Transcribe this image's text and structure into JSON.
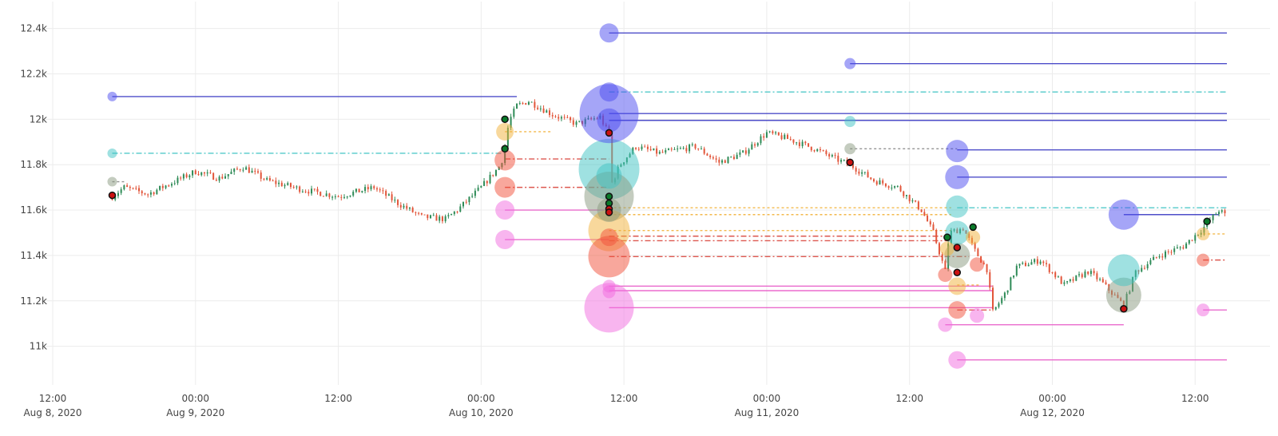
{
  "chart_data": {
    "type": "candlestick",
    "title": "",
    "xlabel": "",
    "ylabel": "",
    "x_range": [
      "2020-08-08T12:00",
      "2020-08-12T14:40"
    ],
    "ylim": [
      10830,
      12490
    ],
    "grid": true,
    "y_ticks": [
      {
        "value": 11000,
        "label": "11k"
      },
      {
        "value": 11200,
        "label": "11.2k"
      },
      {
        "value": 11400,
        "label": "11.4k"
      },
      {
        "value": 11600,
        "label": "11.6k"
      },
      {
        "value": 11800,
        "label": "11.8k"
      },
      {
        "value": 12000,
        "label": "12k"
      },
      {
        "value": 12200,
        "label": "12.2k"
      },
      {
        "value": 12400,
        "label": "12.4k"
      }
    ],
    "x_ticks": [
      {
        "t": "2020-08-08T12:00",
        "line1": "12:00",
        "line2": "Aug 8, 2020"
      },
      {
        "t": "2020-08-09T00:00",
        "line1": "00:00",
        "line2": "Aug 9, 2020"
      },
      {
        "t": "2020-08-09T12:00",
        "line1": "12:00",
        "line2": ""
      },
      {
        "t": "2020-08-10T00:00",
        "line1": "00:00",
        "line2": "Aug 10, 2020"
      },
      {
        "t": "2020-08-10T12:00",
        "line1": "12:00",
        "line2": ""
      },
      {
        "t": "2020-08-11T00:00",
        "line1": "00:00",
        "line2": "Aug 11, 2020"
      },
      {
        "t": "2020-08-11T12:00",
        "line1": "12:00",
        "line2": ""
      },
      {
        "t": "2020-08-12T00:00",
        "line1": "00:00",
        "line2": "Aug 12, 2020"
      },
      {
        "t": "2020-08-12T12:00",
        "line1": "12:00",
        "line2": ""
      }
    ],
    "price_path": [
      [
        "2020-08-08T17:00",
        11660
      ],
      [
        "2020-08-08T18:00",
        11700
      ],
      [
        "2020-08-08T20:00",
        11670
      ],
      [
        "2020-08-08T22:00",
        11720
      ],
      [
        "2020-08-09T00:00",
        11770
      ],
      [
        "2020-08-09T02:00",
        11740
      ],
      [
        "2020-08-09T04:00",
        11790
      ],
      [
        "2020-08-09T06:00",
        11730
      ],
      [
        "2020-08-09T09:00",
        11690
      ],
      [
        "2020-08-09T12:00",
        11660
      ],
      [
        "2020-08-09T15:00",
        11700
      ],
      [
        "2020-08-09T17:00",
        11630
      ],
      [
        "2020-08-09T19:00",
        11570
      ],
      [
        "2020-08-09T21:00",
        11560
      ],
      [
        "2020-08-09T22:00",
        11600
      ],
      [
        "2020-08-10T00:00",
        11700
      ],
      [
        "2020-08-10T01:00",
        11760
      ],
      [
        "2020-08-10T01:40",
        11800
      ],
      [
        "2020-08-10T02:00",
        11880
      ],
      [
        "2020-08-10T02:20",
        11990
      ],
      [
        "2020-08-10T03:00",
        12060
      ],
      [
        "2020-08-10T04:00",
        12080
      ],
      [
        "2020-08-10T06:00",
        12020
      ],
      [
        "2020-08-10T08:00",
        11980
      ],
      [
        "2020-08-10T10:00",
        12010
      ],
      [
        "2020-08-10T10:45",
        11930
      ],
      [
        "2020-08-10T10:48",
        11600
      ],
      [
        "2020-08-10T10:52",
        11480
      ],
      [
        "2020-08-10T11:00",
        11720
      ],
      [
        "2020-08-10T11:40",
        11800
      ],
      [
        "2020-08-10T13:00",
        11880
      ],
      [
        "2020-08-10T15:00",
        11850
      ],
      [
        "2020-08-10T18:00",
        11880
      ],
      [
        "2020-08-10T20:00",
        11810
      ],
      [
        "2020-08-10T22:00",
        11850
      ],
      [
        "2020-08-11T00:00",
        11940
      ],
      [
        "2020-08-11T02:00",
        11910
      ],
      [
        "2020-08-11T04:00",
        11870
      ],
      [
        "2020-08-11T06:00",
        11820
      ],
      [
        "2020-08-11T07:00",
        11800
      ],
      [
        "2020-08-11T09:00",
        11730
      ],
      [
        "2020-08-11T11:00",
        11700
      ],
      [
        "2020-08-11T13:00",
        11600
      ],
      [
        "2020-08-11T14:00",
        11500
      ],
      [
        "2020-08-11T15:00",
        11330
      ],
      [
        "2020-08-11T15:20",
        11500
      ],
      [
        "2020-08-11T16:30",
        11520
      ],
      [
        "2020-08-11T17:30",
        11420
      ],
      [
        "2020-08-11T18:30",
        11340
      ],
      [
        "2020-08-11T19:00",
        11150
      ],
      [
        "2020-08-11T20:00",
        11230
      ],
      [
        "2020-08-11T21:00",
        11350
      ],
      [
        "2020-08-11T23:00",
        11380
      ],
      [
        "2020-08-12T01:00",
        11270
      ],
      [
        "2020-08-12T03:00",
        11330
      ],
      [
        "2020-08-12T04:00",
        11290
      ],
      [
        "2020-08-12T06:00",
        11180
      ],
      [
        "2020-08-12T07:00",
        11330
      ],
      [
        "2020-08-12T09:00",
        11400
      ],
      [
        "2020-08-12T11:00",
        11440
      ],
      [
        "2020-08-12T12:40",
        11520
      ],
      [
        "2020-08-12T14:00",
        11600
      ],
      [
        "2020-08-12T14:40",
        11570
      ]
    ],
    "horizontal_lines": [
      {
        "from": "2020-08-08T17:00",
        "to": "2020-08-10T03:00",
        "y": 12100,
        "style": "solid",
        "color": "#3b3bc4"
      },
      {
        "from": "2020-08-08T17:00",
        "to": "2020-08-10T02:00",
        "y": 11850,
        "style": "dashdot",
        "color": "#40c4c4"
      },
      {
        "from": "2020-08-08T17:00",
        "to": "2020-08-08T18:00",
        "y": 11725,
        "style": "dotted",
        "color": "#888888"
      },
      {
        "from": "2020-08-10T02:00",
        "to": "2020-08-10T06:00",
        "y": 11945,
        "style": "dotted",
        "color": "#f2b23a"
      },
      {
        "from": "2020-08-10T02:00",
        "to": "2020-08-10T10:45",
        "y": 11825,
        "style": "dashdot",
        "color": "#d9453d"
      },
      {
        "from": "2020-08-10T02:00",
        "to": "2020-08-10T10:45",
        "y": 11700,
        "style": "dashdot",
        "color": "#d9453d"
      },
      {
        "from": "2020-08-10T02:00",
        "to": "2020-08-10T10:45",
        "y": 11600,
        "style": "solid",
        "color": "#e85cc8"
      },
      {
        "from": "2020-08-10T02:00",
        "to": "2020-08-10T10:45",
        "y": 11470,
        "style": "solid",
        "color": "#e85cc8"
      },
      {
        "from": "2020-08-10T10:45",
        "to": "2020-08-12T14:40",
        "y": 12380,
        "style": "solid",
        "color": "#3b3bc4"
      },
      {
        "from": "2020-08-10T10:45",
        "to": "2020-08-12T14:40",
        "y": 12120,
        "style": "dashdot",
        "color": "#40c4c4"
      },
      {
        "from": "2020-08-10T10:45",
        "to": "2020-08-12T14:40",
        "y": 12025,
        "style": "solid",
        "color": "#3b3bc4"
      },
      {
        "from": "2020-08-10T10:45",
        "to": "2020-08-12T14:40",
        "y": 11995,
        "style": "solid",
        "color": "#3b3bc4"
      },
      {
        "from": "2020-08-10T10:45",
        "to": "2020-08-11T15:30",
        "y": 11610,
        "style": "dotted",
        "color": "#f2b23a"
      },
      {
        "from": "2020-08-10T10:45",
        "to": "2020-08-11T15:30",
        "y": 11580,
        "style": "dotted",
        "color": "#f2b23a"
      },
      {
        "from": "2020-08-10T10:45",
        "to": "2020-08-11T15:30",
        "y": 11510,
        "style": "dotted",
        "color": "#f2b23a"
      },
      {
        "from": "2020-08-10T10:45",
        "to": "2020-08-11T15:30",
        "y": 11485,
        "style": "dashdot",
        "color": "#d9453d"
      },
      {
        "from": "2020-08-10T10:45",
        "to": "2020-08-11T15:30",
        "y": 11465,
        "style": "dashdot",
        "color": "#d9453d"
      },
      {
        "from": "2020-08-10T10:45",
        "to": "2020-08-11T17:00",
        "y": 11395,
        "style": "dashdot",
        "color": "#d9453d"
      },
      {
        "from": "2020-08-10T10:45",
        "to": "2020-08-11T19:00",
        "y": 11265,
        "style": "solid",
        "color": "#e85cc8"
      },
      {
        "from": "2020-08-10T10:45",
        "to": "2020-08-11T19:00",
        "y": 11245,
        "style": "solid",
        "color": "#e85cc8"
      },
      {
        "from": "2020-08-10T10:45",
        "to": "2020-08-11T19:00",
        "y": 11170,
        "style": "solid",
        "color": "#e85cc8"
      },
      {
        "from": "2020-08-11T07:00",
        "to": "2020-08-12T14:40",
        "y": 12245,
        "style": "solid",
        "color": "#3b3bc4"
      },
      {
        "from": "2020-08-11T07:00",
        "to": "2020-08-11T16:00",
        "y": 11870,
        "style": "dotted",
        "color": "#888888"
      },
      {
        "from": "2020-08-11T16:00",
        "to": "2020-08-12T14:40",
        "y": 11865,
        "style": "solid",
        "color": "#3b3bc4"
      },
      {
        "from": "2020-08-11T16:00",
        "to": "2020-08-12T14:40",
        "y": 11745,
        "style": "solid",
        "color": "#3b3bc4"
      },
      {
        "from": "2020-08-11T16:00",
        "to": "2020-08-12T14:40",
        "y": 11610,
        "style": "dashdot",
        "color": "#40c4c4"
      },
      {
        "from": "2020-08-11T16:00",
        "to": "2020-08-11T18:00",
        "y": 11270,
        "style": "dotted",
        "color": "#f2b23a"
      },
      {
        "from": "2020-08-11T16:00",
        "to": "2020-08-11T19:00",
        "y": 11160,
        "style": "dashdot",
        "color": "#d9453d"
      },
      {
        "from": "2020-08-11T15:00",
        "to": "2020-08-12T06:00",
        "y": 11095,
        "style": "solid",
        "color": "#e85cc8"
      },
      {
        "from": "2020-08-11T16:00",
        "to": "2020-08-12T14:40",
        "y": 10940,
        "style": "solid",
        "color": "#e85cc8"
      },
      {
        "from": "2020-08-12T06:00",
        "to": "2020-08-12T14:00",
        "y": 11580,
        "style": "solid",
        "color": "#3b3bc4"
      },
      {
        "from": "2020-08-12T12:40",
        "to": "2020-08-12T14:40",
        "y": 11495,
        "style": "dotted",
        "color": "#f2b23a"
      },
      {
        "from": "2020-08-12T12:40",
        "to": "2020-08-12T14:40",
        "y": 11380,
        "style": "dashdot",
        "color": "#d9453d"
      },
      {
        "from": "2020-08-12T12:40",
        "to": "2020-08-12T14:40",
        "y": 11160,
        "style": "solid",
        "color": "#e85cc8"
      }
    ],
    "bubbles": [
      {
        "t": "2020-08-08T17:00",
        "y": 12100,
        "size": 12,
        "color": "#4b4bf0"
      },
      {
        "t": "2020-08-08T17:00",
        "y": 11850,
        "size": 12,
        "color": "#40c4c4"
      },
      {
        "t": "2020-08-08T17:00",
        "y": 11725,
        "size": 12,
        "color": "#8a9a80"
      },
      {
        "t": "2020-08-10T02:00",
        "y": 11945,
        "size": 22,
        "color": "#f2b23a"
      },
      {
        "t": "2020-08-10T02:00",
        "y": 11820,
        "size": 26,
        "color": "#f2503a"
      },
      {
        "t": "2020-08-10T02:00",
        "y": 11700,
        "size": 26,
        "color": "#f2503a"
      },
      {
        "t": "2020-08-10T02:00",
        "y": 11600,
        "size": 24,
        "color": "#f26be0"
      },
      {
        "t": "2020-08-10T02:00",
        "y": 11470,
        "size": 24,
        "color": "#f26be0"
      },
      {
        "t": "2020-08-10T10:45",
        "y": 12380,
        "size": 24,
        "color": "#4b4bf0"
      },
      {
        "t": "2020-08-10T10:45",
        "y": 12025,
        "size": 74,
        "color": "#4b4bf0"
      },
      {
        "t": "2020-08-10T10:45",
        "y": 12120,
        "size": 24,
        "color": "#4b4bf0"
      },
      {
        "t": "2020-08-10T10:45",
        "y": 11995,
        "size": 30,
        "color": "#4b4bf0"
      },
      {
        "t": "2020-08-10T10:45",
        "y": 11780,
        "size": 76,
        "color": "#40c4c4"
      },
      {
        "t": "2020-08-10T10:45",
        "y": 11750,
        "size": 32,
        "color": "#40c4c4"
      },
      {
        "t": "2020-08-10T10:45",
        "y": 11660,
        "size": 62,
        "color": "#8a9a80"
      },
      {
        "t": "2020-08-10T10:45",
        "y": 11600,
        "size": 30,
        "color": "#8a9a80"
      },
      {
        "t": "2020-08-10T10:45",
        "y": 11510,
        "size": 52,
        "color": "#f2b23a"
      },
      {
        "t": "2020-08-10T10:45",
        "y": 11480,
        "size": 22,
        "color": "#f2503a"
      },
      {
        "t": "2020-08-10T10:45",
        "y": 11395,
        "size": 52,
        "color": "#f2503a"
      },
      {
        "t": "2020-08-10T10:45",
        "y": 11265,
        "size": 16,
        "color": "#f26be0"
      },
      {
        "t": "2020-08-10T10:45",
        "y": 11240,
        "size": 16,
        "color": "#f26be0"
      },
      {
        "t": "2020-08-10T10:45",
        "y": 11170,
        "size": 62,
        "color": "#f26be0"
      },
      {
        "t": "2020-08-11T07:00",
        "y": 12245,
        "size": 14,
        "color": "#4b4bf0"
      },
      {
        "t": "2020-08-11T07:00",
        "y": 11990,
        "size": 14,
        "color": "#40c4c4"
      },
      {
        "t": "2020-08-11T07:00",
        "y": 11870,
        "size": 14,
        "color": "#8a9a80"
      },
      {
        "t": "2020-08-11T16:00",
        "y": 11860,
        "size": 28,
        "color": "#4b4bf0"
      },
      {
        "t": "2020-08-11T16:00",
        "y": 11745,
        "size": 30,
        "color": "#4b4bf0"
      },
      {
        "t": "2020-08-11T16:00",
        "y": 11615,
        "size": 28,
        "color": "#40c4c4"
      },
      {
        "t": "2020-08-11T16:00",
        "y": 11500,
        "size": 30,
        "color": "#40c4c4"
      },
      {
        "t": "2020-08-11T16:00",
        "y": 11400,
        "size": 32,
        "color": "#8a9a80"
      },
      {
        "t": "2020-08-11T15:10",
        "y": 11430,
        "size": 18,
        "color": "#f2b23a"
      },
      {
        "t": "2020-08-11T17:20",
        "y": 11480,
        "size": 18,
        "color": "#f2b23a"
      },
      {
        "t": "2020-08-11T16:00",
        "y": 11265,
        "size": 22,
        "color": "#f2b23a"
      },
      {
        "t": "2020-08-11T15:00",
        "y": 11315,
        "size": 18,
        "color": "#f2503a"
      },
      {
        "t": "2020-08-11T17:40",
        "y": 11360,
        "size": 18,
        "color": "#f2503a"
      },
      {
        "t": "2020-08-11T16:00",
        "y": 11160,
        "size": 22,
        "color": "#f2503a"
      },
      {
        "t": "2020-08-11T15:00",
        "y": 11095,
        "size": 18,
        "color": "#f26be0"
      },
      {
        "t": "2020-08-11T17:40",
        "y": 11135,
        "size": 18,
        "color": "#f26be0"
      },
      {
        "t": "2020-08-11T16:00",
        "y": 10940,
        "size": 22,
        "color": "#f26be0"
      },
      {
        "t": "2020-08-12T06:00",
        "y": 11580,
        "size": 38,
        "color": "#4b4bf0"
      },
      {
        "t": "2020-08-12T06:00",
        "y": 11335,
        "size": 40,
        "color": "#40c4c4"
      },
      {
        "t": "2020-08-12T06:00",
        "y": 11225,
        "size": 44,
        "color": "#8a9a80"
      },
      {
        "t": "2020-08-12T12:40",
        "y": 11495,
        "size": 16,
        "color": "#f2b23a"
      },
      {
        "t": "2020-08-12T12:40",
        "y": 11380,
        "size": 16,
        "color": "#f2503a"
      },
      {
        "t": "2020-08-12T12:40",
        "y": 11160,
        "size": 16,
        "color": "#f26be0"
      }
    ],
    "markers": [
      {
        "t": "2020-08-08T17:00",
        "y": 11665,
        "color": "#cc1111"
      },
      {
        "t": "2020-08-10T02:00",
        "y": 12000,
        "color": "#0a7a2a"
      },
      {
        "t": "2020-08-10T02:00",
        "y": 11870,
        "color": "#0a7a2a"
      },
      {
        "t": "2020-08-10T10:45",
        "y": 11940,
        "color": "#cc1111"
      },
      {
        "t": "2020-08-10T10:45",
        "y": 11660,
        "color": "#0a7a2a"
      },
      {
        "t": "2020-08-10T10:45",
        "y": 11630,
        "color": "#0a7a2a"
      },
      {
        "t": "2020-08-10T10:45",
        "y": 11605,
        "color": "#cc1111"
      },
      {
        "t": "2020-08-10T10:45",
        "y": 11590,
        "color": "#cc1111"
      },
      {
        "t": "2020-08-11T07:00",
        "y": 11810,
        "color": "#cc1111"
      },
      {
        "t": "2020-08-11T15:10",
        "y": 11480,
        "color": "#0a7a2a"
      },
      {
        "t": "2020-08-11T16:00",
        "y": 11435,
        "color": "#cc1111"
      },
      {
        "t": "2020-08-11T16:00",
        "y": 11325,
        "color": "#cc1111"
      },
      {
        "t": "2020-08-11T17:20",
        "y": 11525,
        "color": "#0a7a2a"
      },
      {
        "t": "2020-08-12T06:00",
        "y": 11165,
        "color": "#cc1111"
      },
      {
        "t": "2020-08-12T13:00",
        "y": 11550,
        "color": "#0a7a2a"
      }
    ],
    "colors": {
      "up": "#2e8b57",
      "down": "#e2553a",
      "grid": "#ececec"
    }
  }
}
